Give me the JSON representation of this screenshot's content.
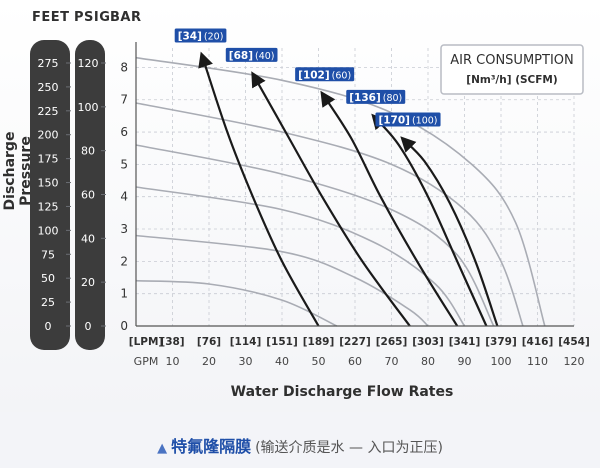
{
  "unit_headers": [
    "FEET",
    "PSIG",
    "BAR"
  ],
  "feet_scale": [
    "275",
    "250",
    "225",
    "200",
    "175",
    "150",
    "125",
    "100",
    "75",
    "50",
    "25",
    "0"
  ],
  "psig_scale": [
    "120",
    "100",
    "80",
    "60",
    "40",
    "20",
    "0"
  ],
  "y_axis_title": "Discharge Pressure",
  "legend": {
    "title": "AIR CONSUMPTION",
    "units": "[Nm³/h] (SCFM)"
  },
  "caption": {
    "marker": "▲",
    "main": "特氟隆隔膜",
    "sub": "(输送介质是水 — 入口为正压)"
  },
  "colors": {
    "column": "#3c3c3c",
    "label_box": "#1f4fa8",
    "air_curve": "#1a1a1a",
    "grid": "#c8cbd3",
    "flow_curve": "#a9acb4"
  },
  "chart_data": {
    "type": "line",
    "xlabel": "Water Discharge Flow Rates",
    "ylabel": "Discharge Pressure",
    "x_lpm_labels": [
      "[LPM]",
      "[38]",
      "[76]",
      "[114]",
      "[151]",
      "[189]",
      "[227]",
      "[265]",
      "[303]",
      "[341]",
      "[379]",
      "[416]",
      "[454]"
    ],
    "x_gpm_labels": [
      "GPM",
      "10",
      "20",
      "30",
      "40",
      "50",
      "60",
      "70",
      "80",
      "90",
      "100",
      "110",
      "120"
    ],
    "y_bar_ticks": [
      "0",
      "1",
      "2",
      "3",
      "4",
      "5",
      "6",
      "7",
      "8"
    ],
    "xlim_gpm": [
      0,
      120
    ],
    "ylim_bar": [
      0,
      8.6
    ],
    "grid": true,
    "legend_position": "top-right",
    "air_consumption_curves": [
      {
        "label_nm3h": "[34]",
        "label_scfm": "(20)",
        "points": [
          [
            50,
            0
          ],
          [
            40,
            2
          ],
          [
            32,
            4
          ],
          [
            25,
            6
          ],
          [
            18,
            8.4
          ]
        ]
      },
      {
        "label_nm3h": "[68]",
        "label_scfm": "(40)",
        "points": [
          [
            75,
            0
          ],
          [
            62,
            2
          ],
          [
            51,
            4
          ],
          [
            41,
            6
          ],
          [
            32,
            7.8
          ]
        ]
      },
      {
        "label_nm3h": "[102]",
        "label_scfm": "(60)",
        "points": [
          [
            88,
            0
          ],
          [
            77,
            2
          ],
          [
            67,
            4
          ],
          [
            59,
            5.8
          ],
          [
            51,
            7.2
          ]
        ]
      },
      {
        "label_nm3h": "[136]",
        "label_scfm": "(80)",
        "points": [
          [
            96,
            0
          ],
          [
            88,
            2
          ],
          [
            80,
            4
          ],
          [
            72,
            5.6
          ],
          [
            65,
            6.5
          ]
        ]
      },
      {
        "label_nm3h": "[170]",
        "label_scfm": "(100)",
        "points": [
          [
            99,
            0
          ],
          [
            93,
            2
          ],
          [
            86,
            3.8
          ],
          [
            79,
            5.1
          ],
          [
            73,
            5.8
          ]
        ]
      }
    ],
    "pump_curves": [
      {
        "points": [
          [
            0,
            8.3
          ],
          [
            40,
            7.6
          ],
          [
            70,
            6.6
          ],
          [
            92,
            5
          ],
          [
            104,
            3.2
          ],
          [
            112,
            0
          ]
        ]
      },
      {
        "points": [
          [
            0,
            6.9
          ],
          [
            40,
            6
          ],
          [
            70,
            5
          ],
          [
            90,
            3.6
          ],
          [
            100,
            2
          ],
          [
            106,
            0
          ]
        ]
      },
      {
        "points": [
          [
            0,
            5.6
          ],
          [
            40,
            4.7
          ],
          [
            70,
            3.6
          ],
          [
            88,
            2.2
          ],
          [
            98,
            0
          ]
        ]
      },
      {
        "points": [
          [
            0,
            4.3
          ],
          [
            40,
            3.6
          ],
          [
            65,
            2.6
          ],
          [
            82,
            1.3
          ],
          [
            90,
            0
          ]
        ]
      },
      {
        "points": [
          [
            0,
            2.8
          ],
          [
            40,
            2.3
          ],
          [
            60,
            1.5
          ],
          [
            75,
            0.5
          ],
          [
            80,
            0
          ]
        ]
      },
      {
        "points": [
          [
            0,
            1.4
          ],
          [
            20,
            1.3
          ],
          [
            40,
            0.8
          ],
          [
            55,
            0
          ]
        ]
      }
    ]
  }
}
